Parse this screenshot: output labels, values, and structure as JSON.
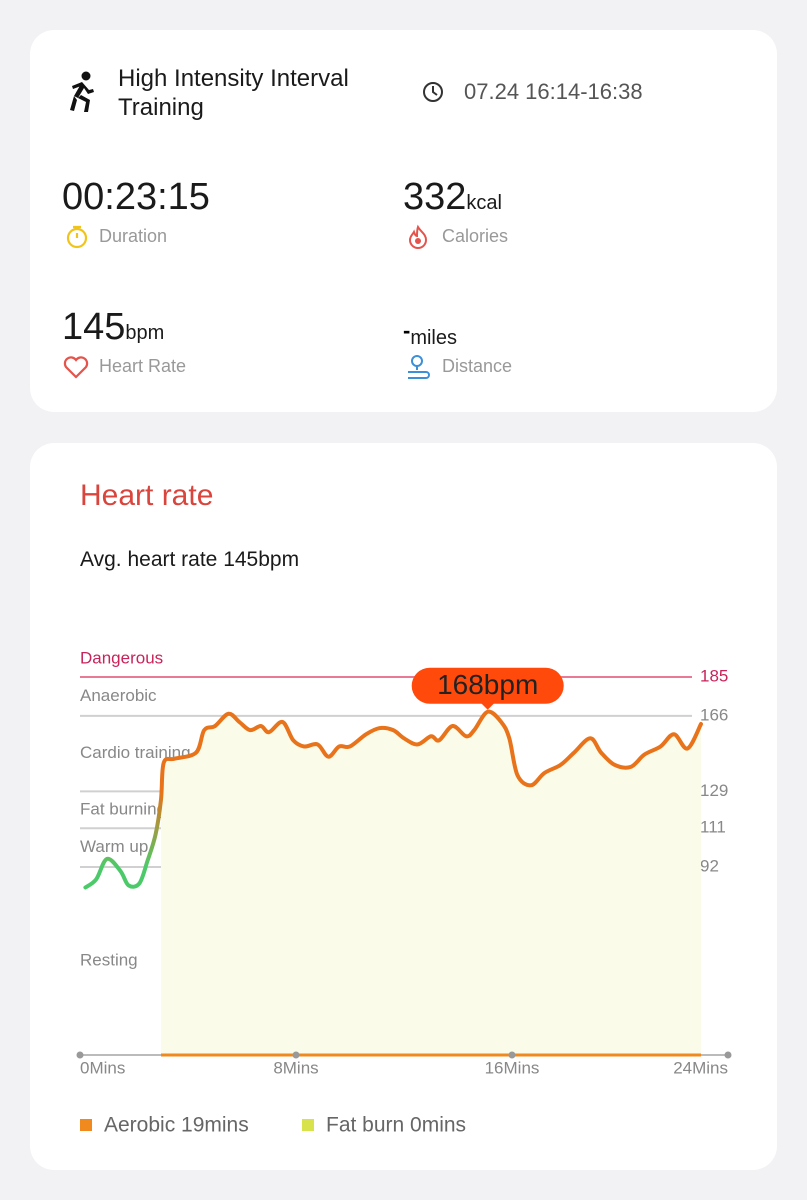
{
  "workout": {
    "name": "High Intensity Interval Training",
    "time": "07.24 16:14-16:38",
    "stats": [
      {
        "value": "00:23:15",
        "label": "Duration"
      },
      {
        "value": "332",
        "unit": "kcal",
        "label": "Calories"
      },
      {
        "value": "145",
        "unit": "bpm",
        "label": "Heart Rate"
      },
      {
        "value": "-",
        "unit": "miles",
        "label": "Distance"
      }
    ]
  },
  "heart_rate": {
    "title": "Heart rate",
    "average": "Avg. heart rate 145bpm"
  },
  "chart_data": {
    "type": "line",
    "zones": [
      "Dangerous",
      "Anaerobic",
      "Cardio training",
      "Fat burning",
      "Warm up",
      "Resting"
    ],
    "x": [
      0.2,
      0.6,
      1.0,
      1.5,
      1.8,
      2.2,
      2.5,
      2.8,
      3.0,
      3.1,
      3.5,
      4.3,
      4.6,
      5.0,
      5.5,
      5.9,
      6.3,
      6.7,
      7.0,
      7.5,
      7.9,
      8.3,
      8.8,
      9.2,
      9.6,
      10.0,
      10.6,
      11.1,
      11.6,
      12.0,
      12.5,
      13.0,
      13.3,
      13.8,
      14.3,
      14.6,
      15.1,
      15.6,
      15.9,
      16.2,
      16.7,
      17.2,
      17.8,
      18.3,
      18.9,
      19.3,
      19.8,
      20.4,
      20.9,
      21.5,
      22.0,
      22.5,
      23.0
    ],
    "values": [
      82,
      86,
      96,
      90,
      83,
      84,
      95,
      108,
      125,
      143,
      145,
      148,
      159,
      161,
      167,
      163,
      159,
      161,
      158,
      163,
      154,
      151,
      152,
      146,
      151,
      151,
      157,
      160,
      159,
      155,
      152,
      156,
      154,
      161,
      156,
      159,
      168,
      163,
      155,
      137,
      132,
      138,
      142,
      148,
      155,
      148,
      142,
      141,
      147,
      151,
      157,
      150,
      162
    ],
    "color": "#e8731a",
    "low_color": "#4cca6a",
    "fill": "#fbfbe9",
    "danger_color": "#c8245a",
    "xlim": [
      0,
      24
    ],
    "xticks": [
      {
        "value": 0,
        "label": "0Mins"
      },
      {
        "value": 8,
        "label": "8Mins"
      },
      {
        "value": 16,
        "label": "16Mins"
      },
      {
        "value": 24,
        "label": "24Mins"
      }
    ],
    "ylim": [
      0,
      185
    ],
    "yticks": [
      92,
      111,
      129,
      166,
      185
    ],
    "grid": true,
    "annotation": {
      "x": 15.1,
      "value": 168,
      "label": "168bpm",
      "color": "#ff4a0c"
    },
    "legend": [
      {
        "label": "Aerobic 19mins",
        "color": "#f08a1e"
      },
      {
        "label": "Fat burn 0mins",
        "color": "#d8e34c"
      }
    ]
  }
}
